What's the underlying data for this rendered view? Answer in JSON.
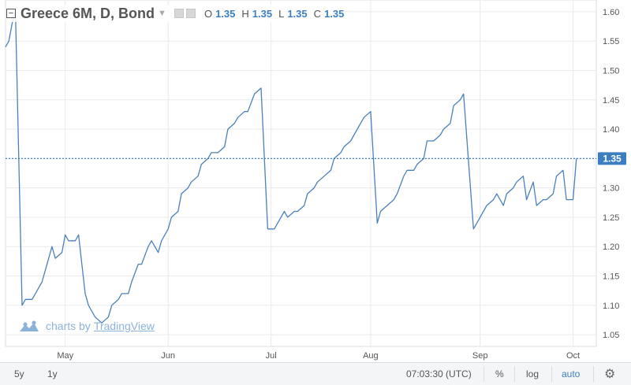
{
  "header": {
    "title": "Greece 6M, D, Bond",
    "ohlc": [
      {
        "label": "O",
        "value": "1.35"
      },
      {
        "label": "H",
        "value": "1.35"
      },
      {
        "label": "L",
        "value": "1.35"
      },
      {
        "label": "C",
        "value": "1.35"
      }
    ]
  },
  "watermark": {
    "text": "charts by",
    "brand": "TradingView"
  },
  "toolbar": {
    "range_5y": "5y",
    "range_1y": "1y",
    "clock": "07:03:30 (UTC)",
    "percent": "%",
    "log": "log",
    "auto": "auto"
  },
  "colors": {
    "line": "#4a80bd",
    "price_label_bg": "#3c7fc0",
    "auto_active": "#3c7fc0",
    "grid": "#e8eaed"
  },
  "icons": [
    "collapse-icon",
    "chevron-down-icon",
    "settings-icon",
    "tradingview-logo-icon",
    "gear-icon"
  ],
  "chart_data": {
    "type": "line",
    "title": "Greece 6M, D, Bond",
    "xlabel": "",
    "ylabel": "",
    "x_tick_labels": [
      "May",
      "Jun",
      "Jul",
      "Aug",
      "Sep",
      "Oct"
    ],
    "x_tick_dates": [
      "2018-05-01",
      "2018-06-01",
      "2018-07-02",
      "2018-08-01",
      "2018-09-03",
      "2018-10-01"
    ],
    "xlim": [
      "2018-04-13",
      "2018-10-08"
    ],
    "y_ticks": [
      1.05,
      1.1,
      1.15,
      1.2,
      1.25,
      1.3,
      1.35,
      1.4,
      1.45,
      1.5,
      1.55,
      1.6
    ],
    "ylim": [
      1.03,
      1.62
    ],
    "last_price": "1.35",
    "grid": true,
    "series": [
      {
        "values": [
          [
            "2018-04-13",
            1.54
          ],
          [
            "2018-04-14",
            1.55
          ],
          [
            "2018-04-15",
            1.58
          ],
          [
            "2018-04-16",
            1.6
          ],
          [
            "2018-04-18",
            1.1
          ],
          [
            "2018-04-19",
            1.11
          ],
          [
            "2018-04-21",
            1.11
          ],
          [
            "2018-04-22",
            1.12
          ],
          [
            "2018-04-24",
            1.14
          ],
          [
            "2018-04-25",
            1.16
          ],
          [
            "2018-04-27",
            1.2
          ],
          [
            "2018-04-28",
            1.18
          ],
          [
            "2018-04-30",
            1.19
          ],
          [
            "2018-05-01",
            1.22
          ],
          [
            "2018-05-02",
            1.21
          ],
          [
            "2018-05-04",
            1.21
          ],
          [
            "2018-05-05",
            1.22
          ],
          [
            "2018-05-07",
            1.12
          ],
          [
            "2018-05-08",
            1.1
          ],
          [
            "2018-05-10",
            1.08
          ],
          [
            "2018-05-12",
            1.07
          ],
          [
            "2018-05-14",
            1.08
          ],
          [
            "2018-05-15",
            1.1
          ],
          [
            "2018-05-17",
            1.11
          ],
          [
            "2018-05-18",
            1.12
          ],
          [
            "2018-05-20",
            1.12
          ],
          [
            "2018-05-21",
            1.14
          ],
          [
            "2018-05-23",
            1.17
          ],
          [
            "2018-05-24",
            1.17
          ],
          [
            "2018-05-26",
            1.2
          ],
          [
            "2018-05-27",
            1.21
          ],
          [
            "2018-05-29",
            1.19
          ],
          [
            "2018-05-30",
            1.21
          ],
          [
            "2018-06-01",
            1.23
          ],
          [
            "2018-06-02",
            1.25
          ],
          [
            "2018-06-04",
            1.26
          ],
          [
            "2018-06-05",
            1.29
          ],
          [
            "2018-06-07",
            1.3
          ],
          [
            "2018-06-08",
            1.31
          ],
          [
            "2018-06-10",
            1.32
          ],
          [
            "2018-06-11",
            1.34
          ],
          [
            "2018-06-13",
            1.35
          ],
          [
            "2018-06-14",
            1.36
          ],
          [
            "2018-06-16",
            1.36
          ],
          [
            "2018-06-18",
            1.37
          ],
          [
            "2018-06-19",
            1.4
          ],
          [
            "2018-06-21",
            1.41
          ],
          [
            "2018-06-22",
            1.42
          ],
          [
            "2018-06-24",
            1.43
          ],
          [
            "2018-06-25",
            1.43
          ],
          [
            "2018-06-27",
            1.46
          ],
          [
            "2018-06-29",
            1.47
          ],
          [
            "2018-07-01",
            1.23
          ],
          [
            "2018-07-03",
            1.23
          ],
          [
            "2018-07-04",
            1.24
          ],
          [
            "2018-07-06",
            1.26
          ],
          [
            "2018-07-07",
            1.25
          ],
          [
            "2018-07-09",
            1.26
          ],
          [
            "2018-07-10",
            1.26
          ],
          [
            "2018-07-12",
            1.27
          ],
          [
            "2018-07-13",
            1.29
          ],
          [
            "2018-07-15",
            1.3
          ],
          [
            "2018-07-16",
            1.31
          ],
          [
            "2018-07-18",
            1.32
          ],
          [
            "2018-07-20",
            1.33
          ],
          [
            "2018-07-21",
            1.35
          ],
          [
            "2018-07-23",
            1.36
          ],
          [
            "2018-07-24",
            1.37
          ],
          [
            "2018-07-26",
            1.38
          ],
          [
            "2018-07-27",
            1.39
          ],
          [
            "2018-07-29",
            1.41
          ],
          [
            "2018-07-30",
            1.42
          ],
          [
            "2018-08-01",
            1.43
          ],
          [
            "2018-08-03",
            1.24
          ],
          [
            "2018-08-04",
            1.26
          ],
          [
            "2018-08-06",
            1.27
          ],
          [
            "2018-08-08",
            1.28
          ],
          [
            "2018-08-09",
            1.29
          ],
          [
            "2018-08-11",
            1.32
          ],
          [
            "2018-08-12",
            1.33
          ],
          [
            "2018-08-14",
            1.33
          ],
          [
            "2018-08-15",
            1.34
          ],
          [
            "2018-08-17",
            1.35
          ],
          [
            "2018-08-18",
            1.38
          ],
          [
            "2018-08-20",
            1.38
          ],
          [
            "2018-08-22",
            1.39
          ],
          [
            "2018-08-23",
            1.4
          ],
          [
            "2018-08-25",
            1.41
          ],
          [
            "2018-08-26",
            1.44
          ],
          [
            "2018-08-28",
            1.45
          ],
          [
            "2018-08-29",
            1.46
          ],
          [
            "2018-09-01",
            1.23
          ],
          [
            "2018-09-02",
            1.24
          ],
          [
            "2018-09-04",
            1.26
          ],
          [
            "2018-09-05",
            1.27
          ],
          [
            "2018-09-07",
            1.28
          ],
          [
            "2018-09-08",
            1.29
          ],
          [
            "2018-09-10",
            1.27
          ],
          [
            "2018-09-11",
            1.29
          ],
          [
            "2018-09-13",
            1.3
          ],
          [
            "2018-09-14",
            1.31
          ],
          [
            "2018-09-16",
            1.32
          ],
          [
            "2018-09-17",
            1.28
          ],
          [
            "2018-09-19",
            1.31
          ],
          [
            "2018-09-20",
            1.27
          ],
          [
            "2018-09-22",
            1.28
          ],
          [
            "2018-09-23",
            1.28
          ],
          [
            "2018-09-25",
            1.29
          ],
          [
            "2018-09-26",
            1.32
          ],
          [
            "2018-09-28",
            1.33
          ],
          [
            "2018-09-29",
            1.28
          ],
          [
            "2018-10-01",
            1.28
          ],
          [
            "2018-10-02",
            1.35
          ]
        ]
      }
    ]
  }
}
